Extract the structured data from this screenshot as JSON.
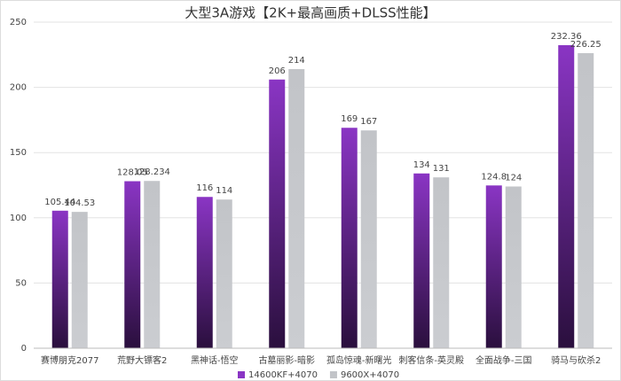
{
  "chart_data": {
    "type": "bar",
    "title": "大型3A游戏【2K+最高画质+DLSS性能】",
    "categories": [
      "赛博朋克2077",
      "荒野大镖客2",
      "黑神话-悟空",
      "古墓丽影-暗影",
      "孤岛惊魂-新曙光",
      "刺客信条-英灵殿",
      "全面战争-三国",
      "骑马与砍杀2"
    ],
    "series": [
      {
        "name": "14600KF+4070",
        "color": "#8a35c4",
        "gradient_end": "#2a0f3d",
        "values": [
          105.44,
          128.05,
          116,
          206,
          169,
          134,
          124.8,
          232.36
        ]
      },
      {
        "name": "9600X+4070",
        "color": "#c2c4c8",
        "gradient_end": "#cbcdd1",
        "values": [
          104.53,
          128.234,
          114,
          214,
          167,
          131,
          124,
          226.25
        ]
      }
    ],
    "ylim": [
      0,
      250
    ],
    "yticks": [
      0,
      50,
      100,
      150,
      200,
      250
    ],
    "grid": true,
    "legend": "bottom"
  }
}
